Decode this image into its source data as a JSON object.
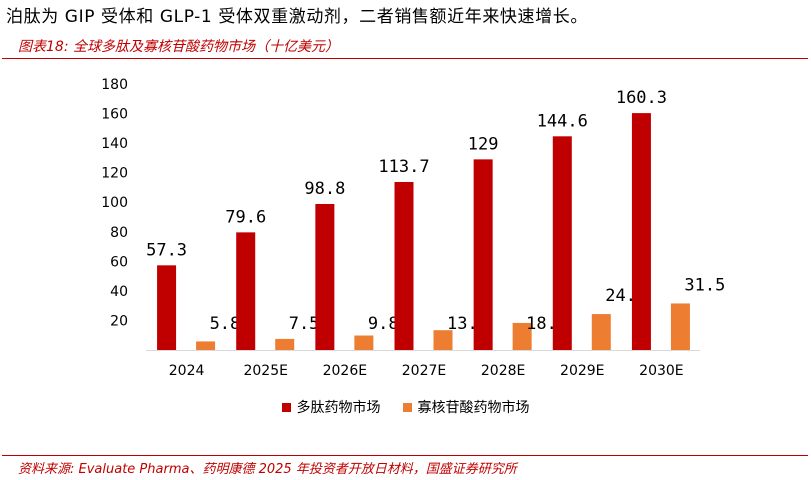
{
  "intro_text": "泊肽为 GIP 受体和 GLP-1 受体双重激动剂，二者销售额近年来快速增长。",
  "figure_title": "图表18:  全球多肽及寡核苷酸药物市场（十亿美元）",
  "source_text": "资料来源:  Evaluate Pharma、药明康德 2025 年投资者开放日材料，国盛证券研究所",
  "colors": {
    "accent": "#c00000",
    "series1": "#c00000",
    "series2": "#ed7d31"
  },
  "chart_data": {
    "type": "bar",
    "categories": [
      "2024",
      "2025E",
      "2026E",
      "2027E",
      "2028E",
      "2029E",
      "2030E"
    ],
    "series": [
      {
        "name": "多肽药物市场",
        "values": [
          57.3,
          79.6,
          98.8,
          113.7,
          129,
          144.6,
          160.3
        ]
      },
      {
        "name": "寡核苷酸药物市场",
        "values": [
          5.8,
          7.5,
          9.8,
          13.4,
          18.3,
          24.3,
          31.5
        ]
      }
    ],
    "data_labels": [
      [
        "57.3",
        "79.6",
        "98.8",
        "113.7",
        "129",
        "144.6",
        "160.3"
      ],
      [
        "5.8",
        "7.5",
        "9.8",
        "13.4",
        "18.3",
        "24.3",
        "31.5"
      ]
    ],
    "y_ticks": [
      "20",
      "40",
      "60",
      "80",
      "100",
      "120",
      "140",
      "160",
      "180"
    ],
    "ylim": [
      0,
      180
    ],
    "title": "",
    "xlabel": "",
    "ylabel": "",
    "grid": false,
    "legend_position": "bottom"
  }
}
